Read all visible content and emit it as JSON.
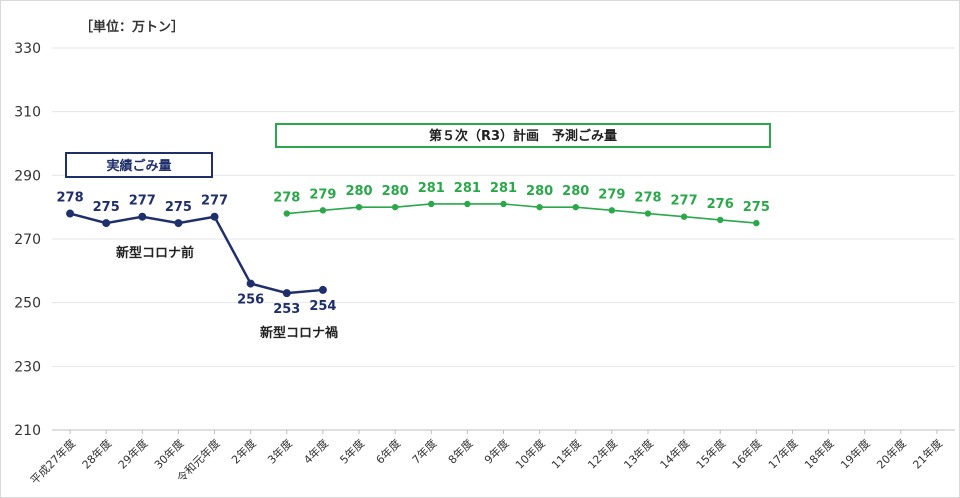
{
  "chart_data": {
    "type": "line",
    "unit_label": "［単位：万トン］",
    "ylim": [
      210,
      330
    ],
    "yticks": [
      210,
      230,
      250,
      270,
      290,
      310,
      330
    ],
    "categories": [
      "平成27年度",
      "28年度",
      "29年度",
      "30年度",
      "令和元年度",
      "2年度",
      "3年度",
      "4年度",
      "5年度",
      "6年度",
      "7年度",
      "8年度",
      "9年度",
      "10年度",
      "11年度",
      "12年度",
      "13年度",
      "14年度",
      "15年度",
      "16年度",
      "17年度",
      "18年度",
      "19年度",
      "20年度",
      "21年度"
    ],
    "series": [
      {
        "name": "実績ごみ量",
        "color": "#1f2f6b",
        "values": [
          278,
          275,
          277,
          275,
          277,
          256,
          253,
          254,
          null,
          null,
          null,
          null,
          null,
          null,
          null,
          null,
          null,
          null,
          null,
          null,
          null,
          null,
          null,
          null,
          null
        ]
      },
      {
        "name": "第５次（R3）計画　予測ごみ量",
        "color": "#2aa84a",
        "values": [
          null,
          null,
          null,
          null,
          null,
          null,
          278,
          279,
          280,
          280,
          281,
          281,
          281,
          280,
          280,
          279,
          278,
          277,
          276,
          275,
          null,
          null,
          null,
          null,
          null
        ]
      }
    ],
    "annotations": [
      "新型コロナ前",
      "新型コロナ禍"
    ],
    "grid": true
  }
}
